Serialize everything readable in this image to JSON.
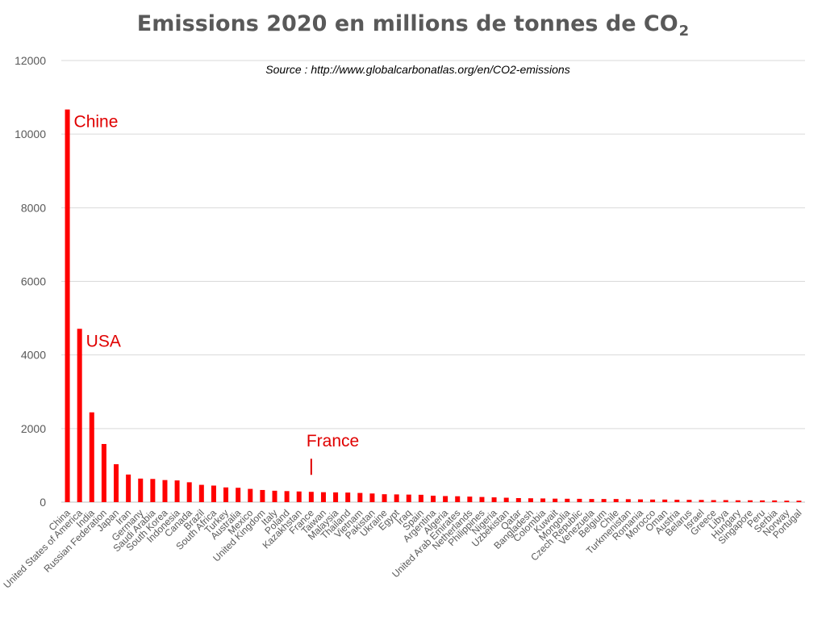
{
  "chart_data": {
    "type": "bar",
    "title_main": "Emissions 2020 en millions de tonnes de CO",
    "title_subscript": "2",
    "source": "Source : http://www.globalcarbonatlas.org/en/CO2-emissions",
    "xlabel": "",
    "ylabel": "",
    "ylim": [
      0,
      12000
    ],
    "yticks": [
      0,
      2000,
      4000,
      6000,
      8000,
      10000,
      12000
    ],
    "grid": true,
    "bar_color": "#ff0000",
    "annotation_color": "#e00000",
    "categories": [
      "China",
      "United States of America",
      "India",
      "Russian Federation",
      "Japan",
      "Iran",
      "Germany",
      "Saudi Arabia",
      "South Korea",
      "Indonesia",
      "Canada",
      "Brazil",
      "South Africa",
      "Turkey",
      "Australia",
      "Mexico",
      "United Kingdom",
      "Italy",
      "Poland",
      "Kazakhstan",
      "France",
      "Taiwan",
      "Malaysia",
      "Thailand",
      "Vietnam",
      "Pakistan",
      "Ukraine",
      "Egypt",
      "Iraq",
      "Spain",
      "Argentina",
      "Algeria",
      "United Arab Emirates",
      "Netherlands",
      "Philippines",
      "Nigeria",
      "Uzbekistan",
      "Qatar",
      "Bangladesh",
      "Colombia",
      "Kuwait",
      "Mongolia",
      "Czech Republic",
      "Venezuela",
      "Belgium",
      "Chile",
      "Turkmenistan",
      "Romania",
      "Morocco",
      "Oman",
      "Austria",
      "Belarus",
      "Israel",
      "Greece",
      "Libya",
      "Hungary",
      "Singapore",
      "Peru",
      "Serbia",
      "Norway",
      "Portugal"
    ],
    "values": [
      10670,
      4710,
      2440,
      1580,
      1030,
      750,
      640,
      630,
      600,
      590,
      540,
      470,
      450,
      400,
      390,
      360,
      330,
      310,
      300,
      290,
      280,
      270,
      265,
      260,
      250,
      235,
      215,
      210,
      205,
      200,
      175,
      165,
      160,
      150,
      140,
      130,
      120,
      110,
      105,
      100,
      95,
      92,
      90,
      85,
      85,
      85,
      80,
      75,
      70,
      70,
      65,
      62,
      60,
      55,
      55,
      50,
      50,
      48,
      47,
      40,
      40
    ],
    "annotations": [
      {
        "label": "Chine",
        "category": "China"
      },
      {
        "label": "USA",
        "category": "United States of America"
      },
      {
        "label": "France",
        "category": "France"
      }
    ]
  }
}
